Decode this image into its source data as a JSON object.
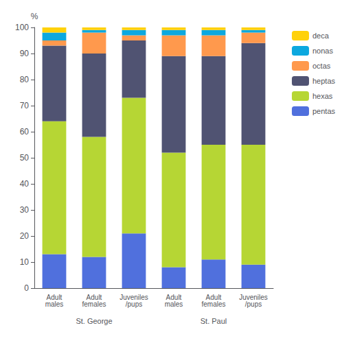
{
  "chart_data": {
    "type": "bar",
    "stacked": true,
    "ylabel": "%",
    "categories": [
      "Adult\nmales",
      "Adult\nfemales",
      "Juveniles\n/pups",
      "Adult\nmales",
      "Adult\nfemales",
      "Juveniles\n/pups"
    ],
    "series": [
      {
        "name": "pentas",
        "values": [
          13,
          12,
          21,
          8,
          11,
          9
        ]
      },
      {
        "name": "hexas",
        "values": [
          51,
          46,
          52,
          44,
          44,
          46
        ]
      },
      {
        "name": "heptas",
        "values": [
          29,
          32,
          22,
          37,
          34,
          39
        ]
      },
      {
        "name": "octas",
        "values": [
          2,
          8,
          2,
          8,
          8,
          4
        ]
      },
      {
        "name": "nonas",
        "values": [
          3,
          1,
          2,
          2,
          2,
          1
        ]
      },
      {
        "name": "deca",
        "values": [
          2,
          1,
          1,
          1,
          1,
          1
        ]
      }
    ],
    "annotations": [
      {
        "text": "St. George",
        "x": 1
      },
      {
        "text": "St. Paul",
        "x": 4
      }
    ],
    "ylim": [
      0,
      100
    ],
    "yticks": [
      0,
      10,
      20,
      30,
      40,
      50,
      60,
      70,
      80,
      90,
      100
    ],
    "grid": false,
    "legend": "right"
  }
}
